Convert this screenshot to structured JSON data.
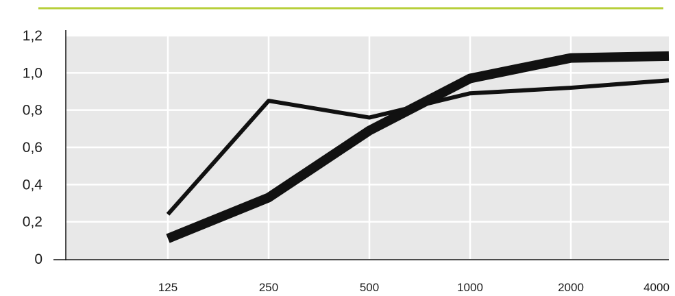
{
  "colors": {
    "accent_line": "#b7cf3a",
    "plot_background": "#e8e8e8",
    "gridline": "#ffffff",
    "series": "#111111"
  },
  "chart_data": {
    "type": "line",
    "title": "",
    "xlabel": "",
    "ylabel": "",
    "categories": [
      "125",
      "250",
      "500",
      "1000",
      "2000",
      "4000"
    ],
    "y_ticks": [
      "0",
      "0,2",
      "0,4",
      "0,6",
      "0,8",
      "1,0",
      "1,2"
    ],
    "ylim": [
      0,
      1.2
    ],
    "grid": true,
    "series": [
      {
        "style": "thin",
        "values": [
          0.24,
          0.85,
          0.76,
          0.89,
          0.92,
          0.96
        ]
      },
      {
        "style": "thick",
        "values": [
          0.11,
          0.33,
          0.69,
          0.97,
          1.08,
          1.09
        ]
      }
    ]
  }
}
